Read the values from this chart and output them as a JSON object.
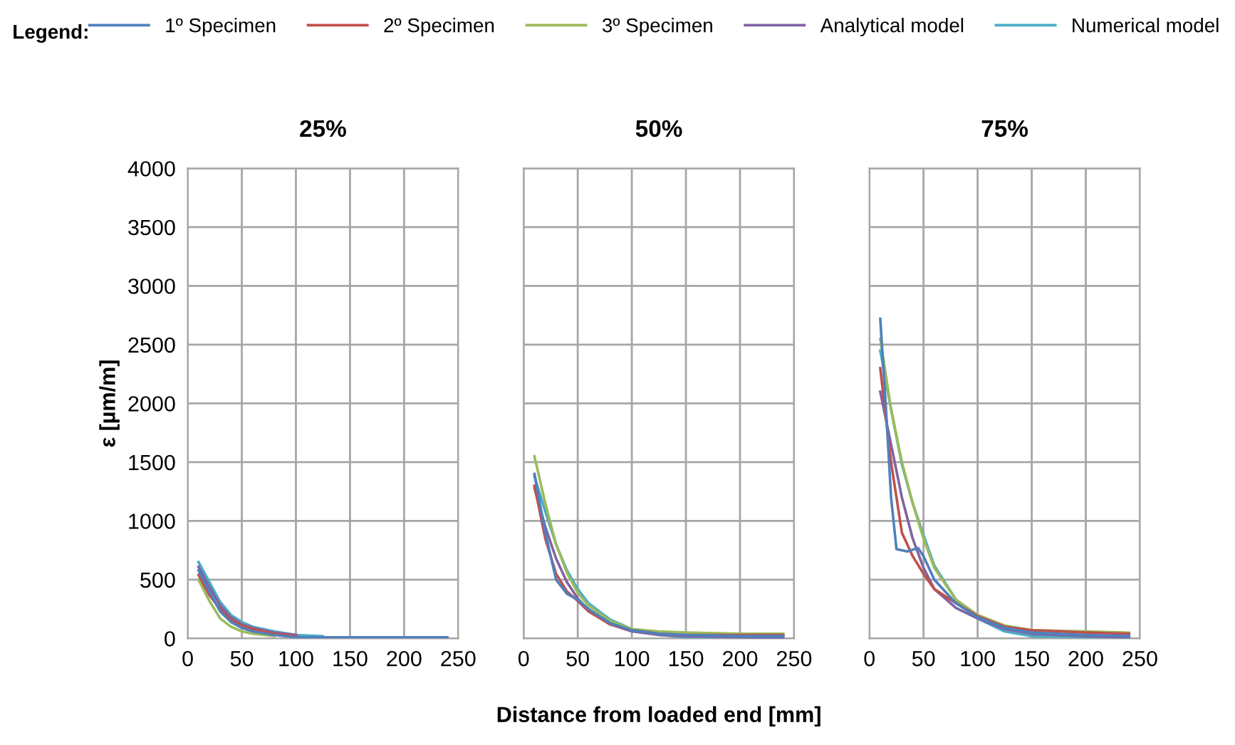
{
  "chart_data": [
    {
      "type": "line",
      "title": "25%",
      "ylabel": "ε [µm/m]",
      "legend_title": "Legend:",
      "legend": "top",
      "grid": true,
      "xlim": [
        0,
        250
      ],
      "xticks": [
        0,
        50,
        100,
        150,
        200,
        250
      ],
      "ylim": [
        0,
        4000
      ],
      "yticks": [
        0,
        500,
        1000,
        1500,
        2000,
        2500,
        3000,
        3500,
        4000
      ],
      "x": [
        10,
        20,
        30,
        40,
        50,
        60,
        80,
        100,
        125,
        150,
        200,
        240
      ],
      "series": [
        {
          "name": "1º Specimen",
          "color": "#4f81bd",
          "values": [
            580,
            400,
            230,
            140,
            90,
            60,
            30,
            10,
            10,
            10,
            10,
            10
          ]
        },
        {
          "name": "2º Specimen",
          "color": "#c0504d",
          "values": [
            540,
            370,
            250,
            160,
            110,
            80,
            40,
            20,
            null,
            null,
            null,
            null
          ]
        },
        {
          "name": "3º Specimen",
          "color": "#9bbb59",
          "values": [
            500,
            320,
            170,
            100,
            60,
            40,
            20,
            null,
            null,
            null,
            null,
            null
          ]
        },
        {
          "name": "Analytical model",
          "color": "#8064a2",
          "values": [
            610,
            440,
            280,
            180,
            120,
            90,
            50,
            30,
            null,
            null,
            null,
            null
          ]
        },
        {
          "name": "Numerical model",
          "color": "#4bacc6",
          "values": [
            650,
            480,
            310,
            200,
            140,
            100,
            60,
            30,
            20,
            null,
            null,
            null
          ]
        }
      ]
    },
    {
      "type": "line",
      "title": "50%",
      "xlabel": "Distance from loaded end [mm]",
      "grid": true,
      "tick_labels": "x",
      "xlim": [
        0,
        250
      ],
      "xticks": [
        0,
        50,
        100,
        150,
        200,
        250
      ],
      "ylim": [
        0,
        4000
      ],
      "x": [
        10,
        20,
        30,
        40,
        50,
        60,
        80,
        100,
        125,
        150,
        200,
        240
      ],
      "series": [
        {
          "color": "#4f81bd",
          "values": [
            1400,
            900,
            500,
            380,
            330,
            250,
            130,
            70,
            40,
            30,
            20,
            20
          ]
        },
        {
          "color": "#c0504d",
          "values": [
            1300,
            850,
            550,
            400,
            320,
            230,
            120,
            70,
            40,
            30,
            30,
            30
          ]
        },
        {
          "color": "#9bbb59",
          "values": [
            1550,
            1150,
            800,
            560,
            390,
            280,
            150,
            80,
            60,
            50,
            40,
            40
          ]
        },
        {
          "color": "#8064a2",
          "values": [
            1280,
            950,
            680,
            480,
            340,
            240,
            120,
            60,
            30,
            20,
            10,
            0
          ]
        },
        {
          "color": "#4bacc6",
          "values": [
            1380,
            1080,
            800,
            580,
            420,
            300,
            160,
            80,
            30,
            10,
            10,
            0
          ]
        }
      ]
    },
    {
      "type": "line",
      "title": "75%",
      "grid": true,
      "tick_labels": "x",
      "xlim": [
        0,
        250
      ],
      "xticks": [
        0,
        50,
        100,
        150,
        200,
        250
      ],
      "ylim": [
        0,
        4000
      ],
      "series": [
        {
          "color": "#4f81bd",
          "x": [
            10,
            15,
            20,
            25,
            35,
            45,
            50,
            60,
            80,
            100,
            125,
            150,
            200,
            240
          ],
          "values": [
            2720,
            2000,
            1200,
            760,
            740,
            770,
            700,
            500,
            300,
            180,
            90,
            50,
            30,
            20
          ]
        },
        {
          "color": "#c0504d",
          "x": [
            10,
            20,
            30,
            40,
            50,
            60,
            80,
            100,
            125,
            150,
            200,
            240
          ],
          "values": [
            2300,
            1500,
            900,
            700,
            550,
            420,
            300,
            190,
            100,
            70,
            50,
            40
          ]
        },
        {
          "color": "#9bbb59",
          "x": [
            10,
            20,
            30,
            40,
            50,
            60,
            80,
            100,
            125,
            150,
            200,
            240
          ],
          "values": [
            2550,
            1950,
            1500,
            1150,
            850,
            600,
            330,
            200,
            110,
            70,
            60,
            50
          ]
        },
        {
          "color": "#8064a2",
          "x": [
            10,
            20,
            30,
            40,
            50,
            60,
            80,
            100,
            125,
            150,
            200,
            240
          ],
          "values": [
            2100,
            1650,
            1200,
            850,
            600,
            420,
            260,
            170,
            80,
            40,
            20,
            10
          ]
        },
        {
          "color": "#4bacc6",
          "x": [
            10,
            20,
            30,
            40,
            50,
            60,
            80,
            100,
            125,
            150,
            200,
            240
          ],
          "values": [
            2450,
            1950,
            1480,
            1150,
            880,
            620,
            330,
            170,
            60,
            20,
            10,
            10
          ]
        }
      ]
    }
  ]
}
